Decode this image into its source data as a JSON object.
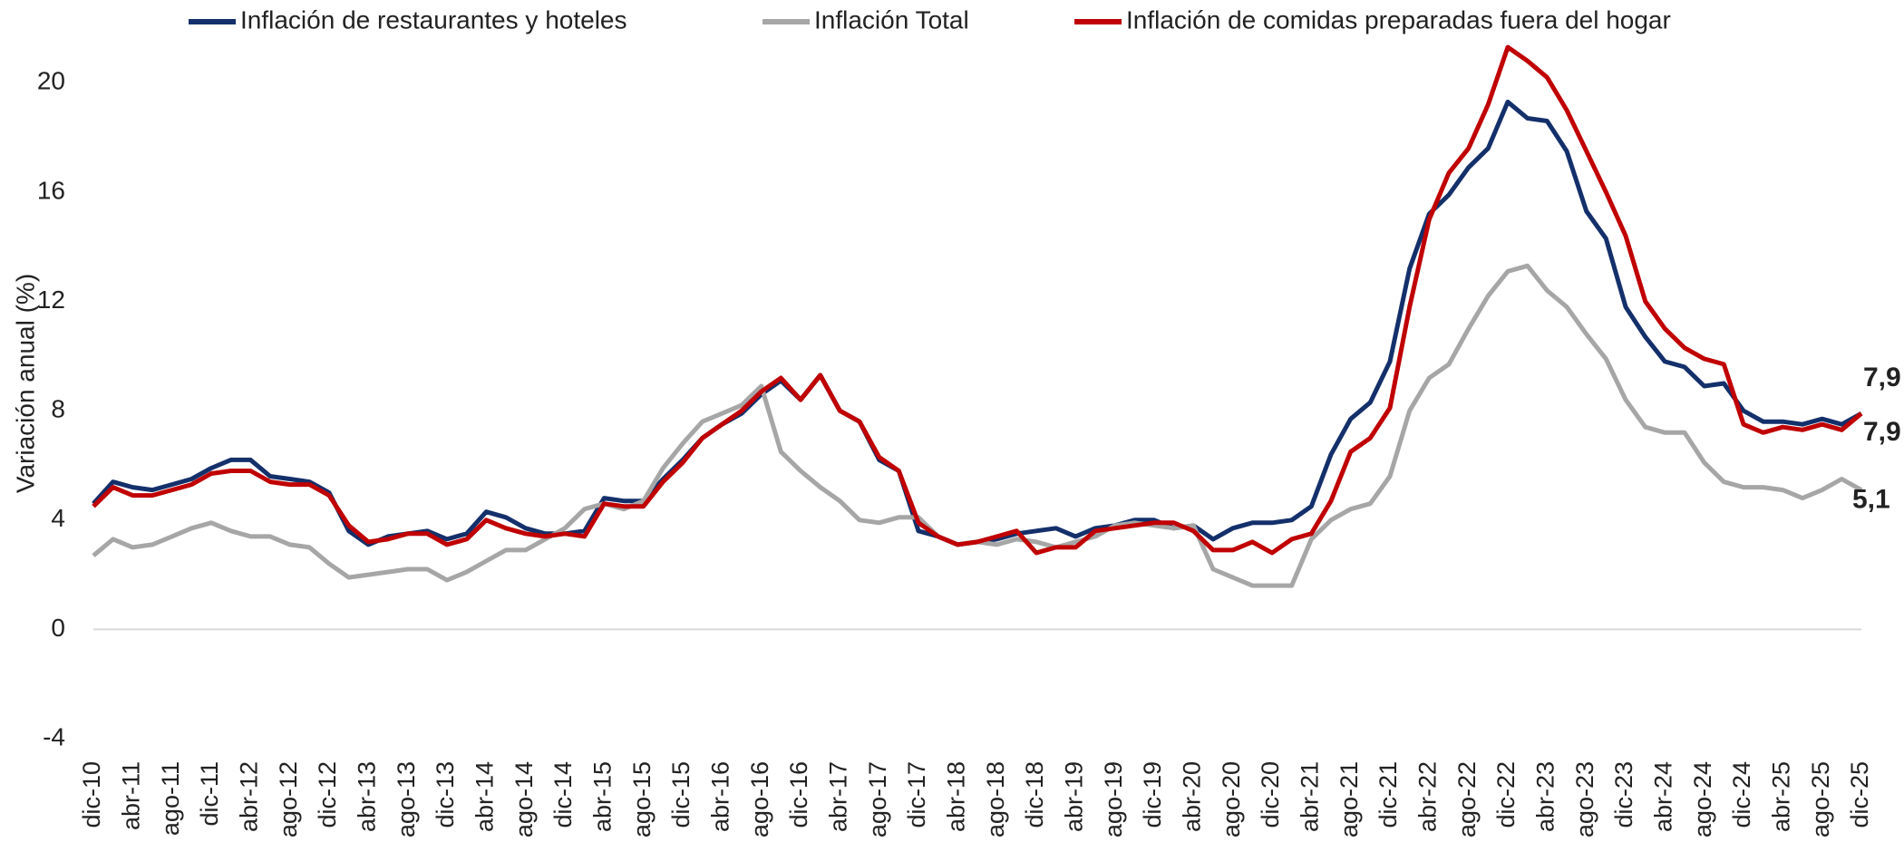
{
  "chart_data": {
    "type": "line",
    "y_label": "Variación anual (%)",
    "legend": "top",
    "grid": false,
    "zero_line": true,
    "ylim": [
      -4,
      22
    ],
    "yticks": [
      -4,
      0,
      4,
      8,
      12,
      16,
      20
    ],
    "categories": [
      "dic-10",
      null,
      "abr-11",
      null,
      "ago-11",
      null,
      "dic-11",
      null,
      "abr-12",
      null,
      "ago-12",
      null,
      "dic-12",
      null,
      "abr-13",
      null,
      "ago-13",
      null,
      "dic-13",
      null,
      "abr-14",
      null,
      "ago-14",
      null,
      "dic-14",
      null,
      "abr-15",
      null,
      "ago-15",
      null,
      "dic-15",
      null,
      "abr-16",
      null,
      "ago-16",
      null,
      "dic-16",
      null,
      "abr-17",
      null,
      "ago-17",
      null,
      "dic-17",
      null,
      "abr-18",
      null,
      "ago-18",
      null,
      "dic-18",
      null,
      "abr-19",
      null,
      "ago-19",
      null,
      "dic-19",
      null,
      "abr-20",
      null,
      "ago-20",
      null,
      "dic-20",
      null,
      "abr-21",
      null,
      "ago-21",
      null,
      "dic-21",
      null,
      "abr-22",
      null,
      "ago-22",
      null,
      "dic-22",
      null,
      "abr-23",
      null,
      "ago-23",
      null,
      "dic-23",
      null,
      "abr-24",
      null,
      "ago-24",
      null,
      "dic-24",
      null,
      "abr-25",
      null,
      "ago-25",
      null,
      "dic-25"
    ],
    "series": [
      {
        "name": "Inflación de restaurantes y hoteles",
        "color": "#14306b",
        "values": [
          4.6,
          5.4,
          5.2,
          5.1,
          5.3,
          5.5,
          5.9,
          6.2,
          6.2,
          5.6,
          5.5,
          5.4,
          5.0,
          3.6,
          3.1,
          3.4,
          3.5,
          3.6,
          3.3,
          3.5,
          4.3,
          4.1,
          3.7,
          3.5,
          3.5,
          3.6,
          4.8,
          4.7,
          4.7,
          5.5,
          6.2,
          7.0,
          7.5,
          7.9,
          8.6,
          9.1,
          8.4,
          9.3,
          8.0,
          7.6,
          6.2,
          5.8,
          3.6,
          3.4,
          3.1,
          3.2,
          3.3,
          3.5,
          3.6,
          3.7,
          3.4,
          3.7,
          3.8,
          4.0,
          4.0,
          3.7,
          3.8,
          3.3,
          3.7,
          3.9,
          3.9,
          4.0,
          4.5,
          6.4,
          7.7,
          8.3,
          9.8,
          13.2,
          15.2,
          15.9,
          16.9,
          17.6,
          19.3,
          18.7,
          18.6,
          17.5,
          15.3,
          14.3,
          11.8,
          10.7,
          9.8,
          9.6,
          8.9,
          9.0,
          8.0,
          7.6,
          7.6,
          7.5,
          7.7,
          7.5,
          7.9
        ],
        "value_labels": [
          null,
          null,
          null,
          null,
          null,
          null,
          null,
          null,
          null,
          null,
          null,
          null,
          null,
          null,
          null,
          null,
          null,
          null,
          null,
          null,
          null,
          null,
          null,
          null,
          null,
          null,
          null,
          null,
          null,
          null,
          null,
          null,
          null,
          null,
          null,
          null,
          null,
          null,
          null,
          null,
          null,
          null,
          null,
          null,
          null,
          null,
          null,
          null,
          null,
          null,
          null,
          null,
          null,
          null,
          null,
          null,
          null,
          null,
          null,
          null,
          null,
          null,
          null,
          null,
          null,
          null,
          null,
          null,
          null,
          null,
          null,
          null,
          null,
          null,
          null,
          null,
          null,
          null,
          null,
          null,
          null,
          null,
          null,
          null,
          null,
          null,
          null,
          null,
          null,
          null,
          "7,9"
        ]
      },
      {
        "name": "Inflación Total",
        "color": "#a6a6a6",
        "values": [
          2.7,
          3.3,
          3.0,
          3.1,
          3.4,
          3.7,
          3.9,
          3.6,
          3.4,
          3.4,
          3.1,
          3.0,
          2.4,
          1.9,
          2.0,
          2.1,
          2.2,
          2.2,
          1.8,
          2.1,
          2.5,
          2.9,
          2.9,
          3.3,
          3.7,
          4.4,
          4.6,
          4.4,
          4.7,
          5.9,
          6.8,
          7.6,
          7.9,
          8.2,
          8.9,
          6.5,
          5.8,
          5.2,
          4.7,
          4.0,
          3.9,
          4.1,
          4.1,
          3.4,
          3.1,
          3.2,
          3.1,
          3.3,
          3.2,
          3.0,
          3.2,
          3.4,
          3.8,
          3.9,
          3.8,
          3.7,
          3.8,
          2.2,
          1.9,
          1.6,
          1.6,
          1.6,
          3.3,
          4.0,
          4.4,
          4.6,
          5.6,
          8.0,
          9.2,
          9.7,
          11.0,
          12.2,
          13.1,
          13.3,
          12.4,
          11.8,
          10.8,
          9.9,
          8.4,
          7.4,
          7.2,
          7.2,
          6.1,
          5.4,
          5.2,
          5.2,
          5.1,
          4.8,
          5.1,
          5.5,
          5.1
        ],
        "value_labels": [
          null,
          null,
          null,
          null,
          null,
          null,
          null,
          null,
          null,
          null,
          null,
          null,
          null,
          null,
          null,
          null,
          null,
          null,
          null,
          null,
          null,
          null,
          null,
          null,
          null,
          null,
          null,
          null,
          null,
          null,
          null,
          null,
          null,
          null,
          null,
          null,
          null,
          null,
          null,
          null,
          null,
          null,
          null,
          null,
          null,
          null,
          null,
          null,
          null,
          null,
          null,
          null,
          null,
          null,
          null,
          null,
          null,
          null,
          null,
          null,
          null,
          null,
          null,
          null,
          null,
          null,
          null,
          null,
          null,
          null,
          null,
          null,
          null,
          null,
          null,
          null,
          null,
          null,
          null,
          null,
          null,
          null,
          null,
          null,
          null,
          null,
          null,
          null,
          null,
          null,
          "5,1"
        ]
      },
      {
        "name": "Inflación de comidas preparadas fuera del hogar",
        "color": "#c00000",
        "values": [
          4.5,
          5.2,
          4.9,
          4.9,
          5.1,
          5.3,
          5.7,
          5.8,
          5.8,
          5.4,
          5.3,
          5.3,
          4.9,
          3.8,
          3.2,
          3.3,
          3.5,
          3.5,
          3.1,
          3.3,
          4.0,
          3.7,
          3.5,
          3.4,
          3.5,
          3.4,
          4.6,
          4.5,
          4.5,
          5.4,
          6.1,
          7.0,
          7.5,
          8.0,
          8.7,
          9.2,
          8.4,
          9.3,
          8.0,
          7.6,
          6.3,
          5.8,
          3.9,
          3.4,
          3.1,
          3.2,
          3.4,
          3.6,
          2.8,
          3.0,
          3.0,
          3.6,
          3.7,
          3.8,
          3.9,
          3.9,
          3.6,
          2.9,
          2.9,
          3.2,
          2.8,
          3.3,
          3.5,
          4.7,
          6.5,
          7.0,
          8.1,
          11.8,
          15.0,
          16.7,
          17.6,
          19.2,
          21.3,
          20.8,
          20.2,
          19.0,
          17.5,
          16.0,
          14.4,
          12.0,
          11.0,
          10.3,
          9.9,
          9.7,
          7.5,
          7.2,
          7.4,
          7.3,
          7.5,
          7.3,
          7.9
        ],
        "value_labels": [
          null,
          null,
          null,
          null,
          null,
          null,
          null,
          null,
          null,
          null,
          null,
          null,
          null,
          null,
          null,
          null,
          null,
          null,
          null,
          null,
          null,
          null,
          null,
          null,
          null,
          null,
          null,
          null,
          null,
          null,
          null,
          null,
          null,
          null,
          null,
          null,
          null,
          null,
          null,
          null,
          null,
          null,
          null,
          null,
          null,
          null,
          null,
          null,
          null,
          null,
          null,
          null,
          null,
          null,
          null,
          null,
          null,
          null,
          null,
          null,
          null,
          null,
          null,
          null,
          null,
          null,
          null,
          null,
          null,
          null,
          null,
          null,
          null,
          null,
          null,
          null,
          null,
          null,
          null,
          null,
          null,
          null,
          null,
          null,
          null,
          null,
          null,
          null,
          null,
          null,
          "7,9"
        ]
      }
    ]
  }
}
